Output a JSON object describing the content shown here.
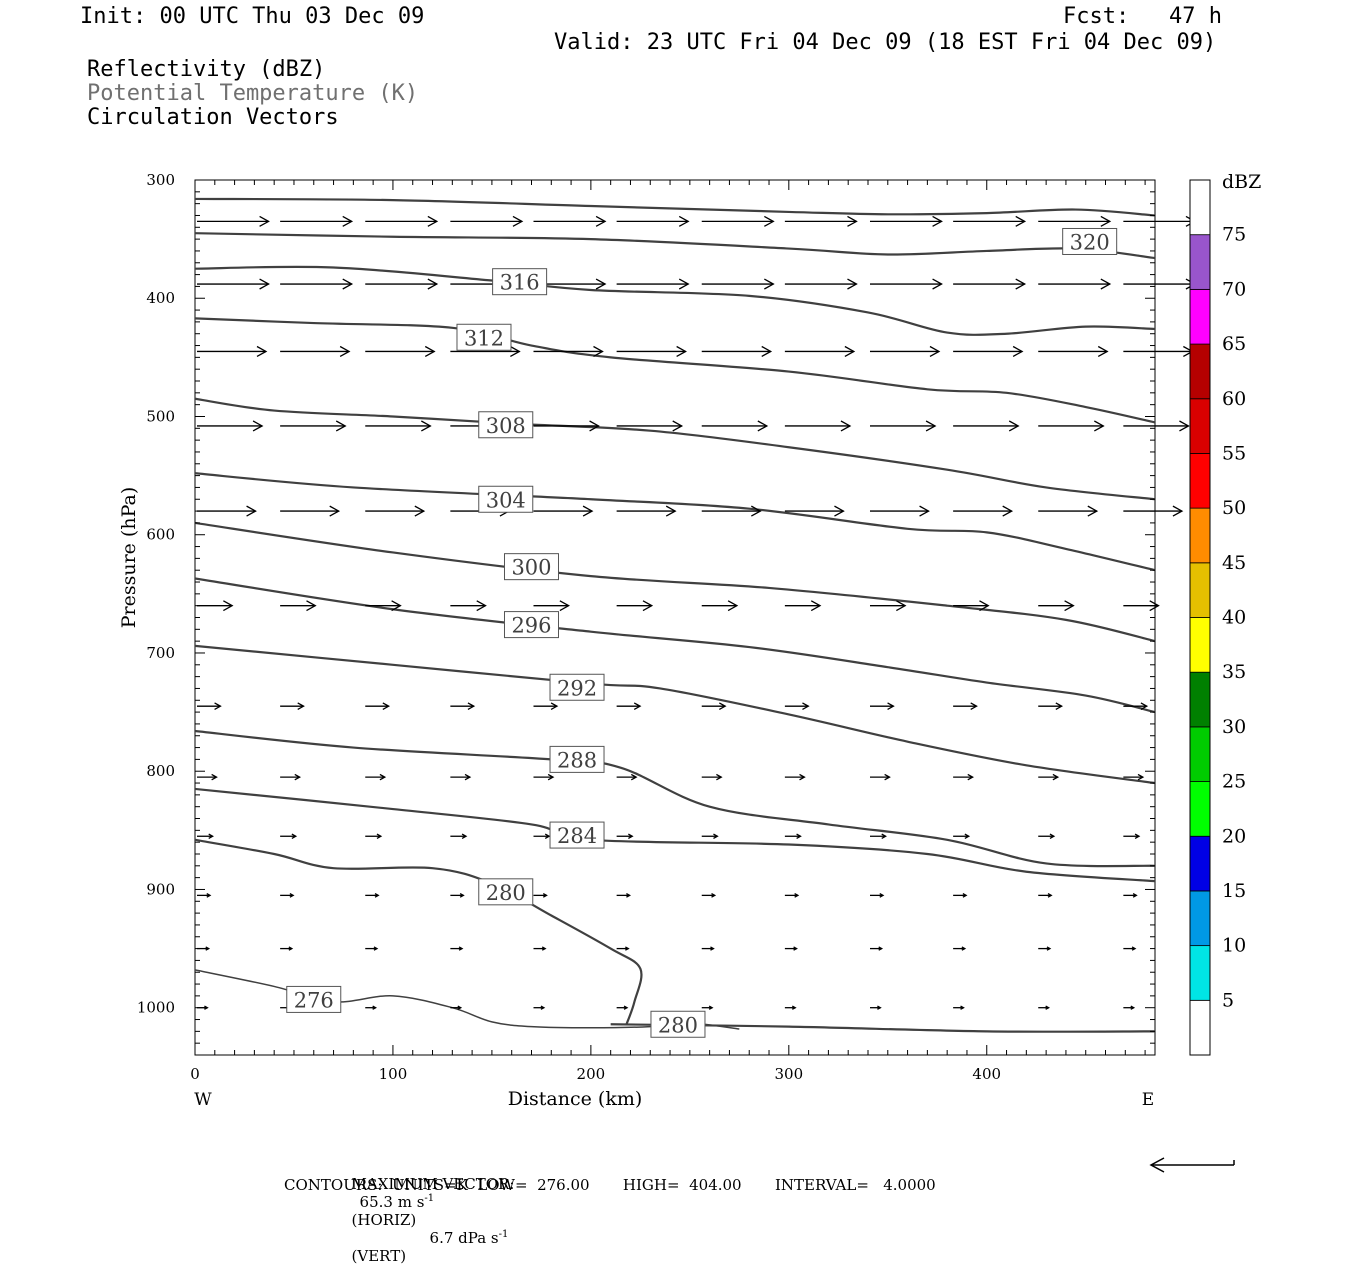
{
  "header": {
    "init": "Init: 00 UTC Thu 03 Dec 09",
    "fcst": "Fcst:   47 h",
    "valid": "Valid: 23 UTC Fri 04 Dec 09 (18 EST Fri 04 Dec 09)",
    "fields": [
      "Reflectivity (dBZ)",
      "Potential Temperature (K)",
      "Circulation Vectors"
    ]
  },
  "colors": {
    "contour": "#404040",
    "potential_temp_label": "#707070",
    "colorbar": [
      "#ffffff",
      "#00e5e5",
      "#0099e5",
      "#0000e5",
      "#00ff00",
      "#00cc00",
      "#008000",
      "#ffff00",
      "#e5c000",
      "#ff8c00",
      "#ff0000",
      "#d90000",
      "#b50000",
      "#ff00ff",
      "#9955cc",
      "#ffffff"
    ]
  },
  "chart_data": {
    "type": "contour-cross-section",
    "xlabel": "Distance (km)",
    "ylabel": "Pressure (hPa)",
    "xlim": [
      0,
      485
    ],
    "ylim": [
      1040,
      300
    ],
    "x_ticks": [
      "0",
      "100",
      "200",
      "300",
      "400"
    ],
    "y_ticks": [
      "300",
      "400",
      "500",
      "600",
      "700",
      "800",
      "900",
      "1000"
    ],
    "x_ends": [
      "W",
      "E"
    ],
    "colorbar": {
      "title": "dBZ",
      "levels": [
        "5",
        "10",
        "15",
        "20",
        "25",
        "30",
        "35",
        "40",
        "45",
        "50",
        "55",
        "60",
        "65",
        "70",
        "75"
      ]
    },
    "isentropes": [
      {
        "theta": 320,
        "label": "320",
        "points": [
          [
            0,
            316
          ],
          [
            100,
            317
          ],
          [
            200,
            322
          ],
          [
            300,
            327
          ],
          [
            350,
            329
          ],
          [
            400,
            328
          ],
          [
            445,
            325
          ],
          [
            485,
            330
          ]
        ]
      },
      {
        "theta": 320,
        "label": "",
        "points": [
          [
            0,
            345
          ],
          [
            100,
            348
          ],
          [
            200,
            350
          ],
          [
            300,
            358
          ],
          [
            350,
            363
          ],
          [
            400,
            360
          ],
          [
            445,
            358
          ],
          [
            485,
            366
          ]
        ]
      },
      {
        "theta": 316,
        "label": "316",
        "points": [
          [
            0,
            375
          ],
          [
            70,
            374
          ],
          [
            150,
            385
          ],
          [
            200,
            393
          ],
          [
            280,
            398
          ],
          [
            340,
            412
          ],
          [
            380,
            429
          ],
          [
            410,
            430
          ],
          [
            450,
            424
          ],
          [
            485,
            426
          ]
        ]
      },
      {
        "theta": 312,
        "label": "312",
        "points": [
          [
            0,
            417
          ],
          [
            60,
            421
          ],
          [
            130,
            425
          ],
          [
            170,
            440
          ],
          [
            210,
            450
          ],
          [
            300,
            462
          ],
          [
            370,
            477
          ],
          [
            410,
            480
          ],
          [
            450,
            492
          ],
          [
            485,
            505
          ]
        ]
      },
      {
        "theta": 308,
        "label": "308",
        "points": [
          [
            0,
            485
          ],
          [
            40,
            495
          ],
          [
            100,
            500
          ],
          [
            160,
            506
          ],
          [
            230,
            512
          ],
          [
            300,
            526
          ],
          [
            380,
            545
          ],
          [
            430,
            560
          ],
          [
            485,
            570
          ]
        ]
      },
      {
        "theta": 304,
        "label": "304",
        "points": [
          [
            0,
            548
          ],
          [
            80,
            560
          ],
          [
            200,
            570
          ],
          [
            280,
            578
          ],
          [
            360,
            595
          ],
          [
            400,
            598
          ],
          [
            440,
            612
          ],
          [
            485,
            630
          ]
        ]
      },
      {
        "theta": 300,
        "label": "300",
        "points": [
          [
            0,
            590
          ],
          [
            100,
            615
          ],
          [
            200,
            635
          ],
          [
            290,
            645
          ],
          [
            380,
            660
          ],
          [
            440,
            672
          ],
          [
            485,
            690
          ]
        ]
      },
      {
        "theta": 296,
        "label": "296",
        "points": [
          [
            0,
            637
          ],
          [
            100,
            663
          ],
          [
            200,
            682
          ],
          [
            280,
            695
          ],
          [
            350,
            712
          ],
          [
            400,
            725
          ],
          [
            450,
            736
          ],
          [
            485,
            750
          ]
        ]
      },
      {
        "theta": 292,
        "label": "292",
        "points": [
          [
            0,
            694
          ],
          [
            100,
            710
          ],
          [
            200,
            726
          ],
          [
            235,
            730
          ],
          [
            300,
            752
          ],
          [
            360,
            775
          ],
          [
            420,
            795
          ],
          [
            485,
            810
          ]
        ]
      },
      {
        "theta": 288,
        "label": "288",
        "points": [
          [
            0,
            766
          ],
          [
            80,
            780
          ],
          [
            180,
            790
          ],
          [
            215,
            797
          ],
          [
            260,
            830
          ],
          [
            320,
            845
          ],
          [
            380,
            858
          ],
          [
            430,
            878
          ],
          [
            485,
            880
          ]
        ]
      },
      {
        "theta": 284,
        "label": "284",
        "points": [
          [
            0,
            815
          ],
          [
            100,
            832
          ],
          [
            170,
            845
          ],
          [
            200,
            858
          ],
          [
            300,
            862
          ],
          [
            370,
            870
          ],
          [
            420,
            885
          ],
          [
            485,
            893
          ]
        ]
      },
      {
        "theta": 280,
        "label": "280",
        "points": [
          [
            0,
            858
          ],
          [
            40,
            870
          ],
          [
            70,
            882
          ],
          [
            120,
            882
          ],
          [
            150,
            895
          ],
          [
            180,
            922
          ],
          [
            210,
            950
          ],
          [
            225,
            967
          ],
          [
            222,
            995
          ],
          [
            218,
            1014
          ]
        ]
      },
      {
        "theta": 280,
        "label": "280",
        "points": [
          [
            210,
            1014
          ],
          [
            300,
            1016
          ],
          [
            400,
            1020
          ],
          [
            485,
            1020
          ]
        ]
      },
      {
        "theta": 276,
        "label": "276",
        "points": [
          [
            0,
            968
          ],
          [
            40,
            982
          ],
          [
            70,
            995
          ],
          [
            100,
            990
          ],
          [
            130,
            1000
          ],
          [
            150,
            1012
          ],
          [
            170,
            1016
          ],
          [
            200,
            1017
          ],
          [
            230,
            1016
          ],
          [
            250,
            1013
          ],
          [
            275,
            1018
          ]
        ]
      }
    ],
    "vectors_rows": [
      {
        "p": 335,
        "u": 55,
        "w": 0
      },
      {
        "p": 388,
        "u": 55,
        "w": 0
      },
      {
        "p": 445,
        "u": 53,
        "w": 0
      },
      {
        "p": 508,
        "u": 50,
        "w": 0
      },
      {
        "p": 580,
        "u": 45,
        "w": 0
      },
      {
        "p": 660,
        "u": 27,
        "w": 0
      },
      {
        "p": 745,
        "u": 18,
        "w": 0
      },
      {
        "p": 805,
        "u": 15,
        "w": 0
      },
      {
        "p": 855,
        "u": 12,
        "w": 0
      },
      {
        "p": 905,
        "u": 10,
        "w": 0
      },
      {
        "p": 950,
        "u": 9,
        "w": 0
      },
      {
        "p": 1000,
        "u": 8,
        "w": 0
      }
    ],
    "vectors_x": [
      0,
      42,
      85,
      128,
      170,
      212,
      255,
      297,
      340,
      382,
      425,
      468
    ]
  },
  "footer": {
    "maxvec_label": "MAXIMUM VECTOR:",
    "maxvec_horiz": "65.3 m s",
    "maxvec_horiz_unit": "(HORIZ)",
    "maxvec_vert": "6.7 dPa s",
    "maxvec_vert_unit": "(VERT)",
    "contours": "CONTOURS:  UNITS=K  LOW=  276.00       HIGH=  404.00       INTERVAL=   4.0000"
  }
}
